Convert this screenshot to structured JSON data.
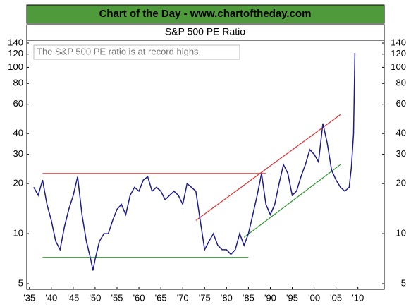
{
  "chart_data": {
    "type": "line",
    "header": "Chart of the Day - www.chartoftheday.com",
    "title": "S&P 500 PE Ratio",
    "annotation": "The S&P 500 PE ratio is at record highs.",
    "log_scale": true,
    "grid": false,
    "color": "#1c1c8c",
    "x": [
      1936,
      1937,
      1938,
      1939,
      1940,
      1941,
      1942,
      1943,
      1944,
      1945,
      1946,
      1947,
      1948,
      1949,
      1949.5,
      1950,
      1951,
      1952,
      1953,
      1954,
      1955,
      1956,
      1957,
      1958,
      1959,
      1960,
      1961,
      1962,
      1963,
      1964,
      1965,
      1966,
      1967,
      1968,
      1969,
      1970,
      1971,
      1972,
      1973,
      1974,
      1975,
      1976,
      1977,
      1978,
      1979,
      1980,
      1981,
      1982,
      1983,
      1984,
      1985,
      1986,
      1987,
      1988,
      1989,
      1990,
      1991,
      1992,
      1993,
      1994,
      1995,
      1996,
      1997,
      1998,
      1999,
      2000,
      2001,
      2002,
      2003,
      2004,
      2005,
      2006,
      2007,
      2008,
      2008.5,
      2009,
      2009.3
    ],
    "values": [
      19,
      17,
      21,
      15,
      12,
      9,
      8,
      11,
      14,
      17,
      22,
      13,
      9,
      7,
      6,
      7,
      9,
      10,
      10,
      12,
      14,
      15,
      13,
      17,
      19,
      18,
      21,
      22,
      18,
      19,
      18,
      16,
      17,
      18,
      17,
      15,
      20,
      19,
      18,
      12,
      8,
      9,
      10,
      8.5,
      8,
      8,
      7.5,
      8,
      10,
      8.5,
      10,
      13,
      17,
      23,
      15,
      13,
      15,
      20,
      26,
      23,
      17,
      18,
      22,
      26,
      32,
      30,
      27,
      46,
      35,
      24,
      21,
      19,
      18,
      19,
      25,
      40,
      122
    ],
    "lines": [
      {
        "x": [
          1938,
          1989
        ],
        "values": [
          23,
          23
        ],
        "color": "#e03030"
      },
      {
        "x": [
          1938,
          1985
        ],
        "values": [
          7.2,
          7.2
        ],
        "color": "#2e9a2e"
      },
      {
        "x": [
          1973,
          2006
        ],
        "values": [
          12,
          52
        ],
        "color": "#e03030"
      },
      {
        "x": [
          1984,
          2006
        ],
        "values": [
          9.5,
          26
        ],
        "color": "#2e9a2e"
      }
    ],
    "xlim": [
      1934.4,
      2016
    ],
    "xticks": [
      {
        "value": 1935,
        "label": "'35"
      },
      {
        "value": 1940,
        "label": "'40"
      },
      {
        "value": 1945,
        "label": "'45"
      },
      {
        "value": 1950,
        "label": "'50"
      },
      {
        "value": 1955,
        "label": "'55"
      },
      {
        "value": 1960,
        "label": "'60"
      },
      {
        "value": 1965,
        "label": "'65"
      },
      {
        "value": 1970,
        "label": "'70"
      },
      {
        "value": 1975,
        "label": "'75"
      },
      {
        "value": 1980,
        "label": "'80"
      },
      {
        "value": 1985,
        "label": "'85"
      },
      {
        "value": 1990,
        "label": "'90"
      },
      {
        "value": 1995,
        "label": "'95"
      },
      {
        "value": 2000,
        "label": "'00"
      },
      {
        "value": 2005,
        "label": "'05"
      },
      {
        "value": 2010,
        "label": "'10"
      }
    ],
    "ylim": [
      5,
      140
    ],
    "yticks": [
      5,
      10,
      20,
      30,
      40,
      60,
      80,
      100,
      120,
      140
    ],
    "y2lim": [
      5,
      140
    ],
    "y2ticks": [
      5,
      10,
      20,
      30,
      40,
      60,
      80,
      100,
      120,
      140
    ]
  }
}
